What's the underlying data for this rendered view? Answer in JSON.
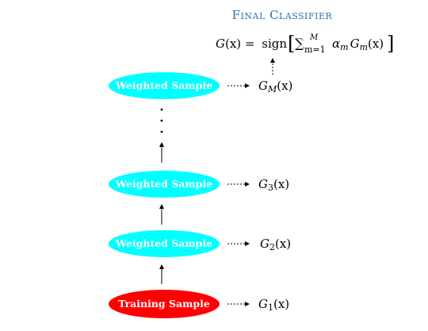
{
  "title": "Final Classifier",
  "colors": {
    "title": "#2f6fb3",
    "weighted_node": "#00ffff",
    "training_node": "#ff0000",
    "node_text": "#ffffff",
    "line": "#000000"
  },
  "nodes": [
    {
      "label": "Weighted Sample",
      "classifier": {
        "name": "G",
        "sub": "M",
        "arg": "(x)"
      }
    },
    {
      "label": "Weighted Sample",
      "classifier": {
        "name": "G",
        "sub": "3",
        "arg": "(x)"
      }
    },
    {
      "label": "Weighted Sample",
      "classifier": {
        "name": "G",
        "sub": "2",
        "arg": "(x)"
      }
    },
    {
      "label": "Training Sample",
      "classifier": {
        "name": "G",
        "sub": "1",
        "arg": "(x)"
      }
    }
  ],
  "formula": {
    "lhs": "G",
    "lhs_arg": "(x) =",
    "op": "sign",
    "sum_symbol": "∑",
    "sum_upper": "M",
    "sum_lower": "m=1",
    "alpha": "α",
    "alpha_sub": "m",
    "g": "G",
    "g_sub": "m",
    "g_arg": "(x)",
    "lbracket": "[",
    "rbracket": "]"
  }
}
